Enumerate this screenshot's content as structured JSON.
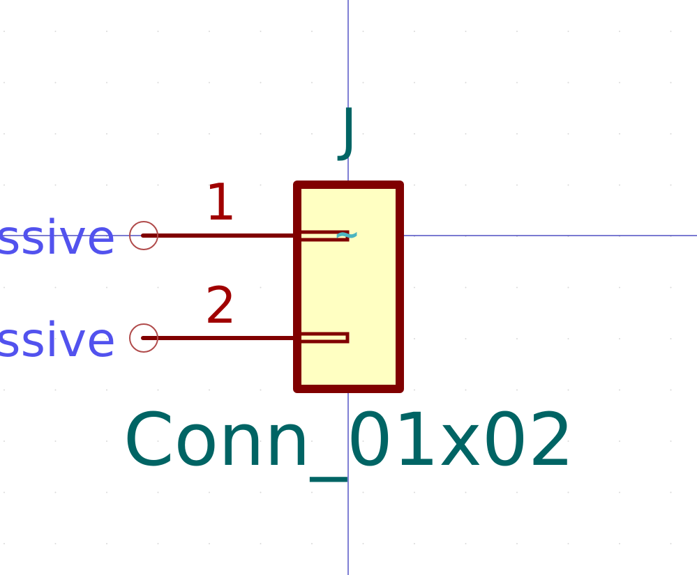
{
  "symbol": {
    "reference": "J",
    "value": "Conn_01x02",
    "pins": [
      {
        "number": "1",
        "type_label": "ssive"
      },
      {
        "number": "2",
        "type_label": "ssive"
      }
    ],
    "anchor_glyph": "~"
  },
  "colors": {
    "background": "#ffffff",
    "grid_dot": "#d9d9d9",
    "crosshair": "#2a2ab8",
    "body_outline": "#800000",
    "body_fill": "#ffffc2",
    "pin_line": "#800000",
    "pin_number": "#a00000",
    "pin_endpoint": "#b04a4a",
    "pin_type_text": "#5252ee",
    "field_text": "#006464",
    "anchor_mark": "#4cb5c0"
  }
}
